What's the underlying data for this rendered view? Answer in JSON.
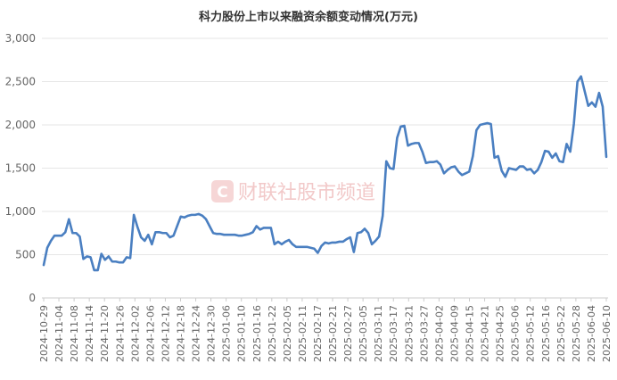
{
  "chart_data": {
    "type": "line",
    "title": "科力股份上市以来融资余额变动情况(万元)",
    "xlabel": "",
    "ylabel": "",
    "ylim": [
      0,
      3000
    ],
    "yticks": [
      "0",
      "500",
      "1,000",
      "1,500",
      "2,000",
      "2,500",
      "3,000"
    ],
    "grid": true,
    "legend": "none",
    "line_color": "#4a7fc1",
    "xticks": [
      "2024-10-29",
      "2024-11-04",
      "2024-11-08",
      "2024-11-14",
      "2024-11-20",
      "2024-11-26",
      "2024-12-02",
      "2024-12-06",
      "2024-12-12",
      "2024-12-18",
      "2024-12-24",
      "2024-12-30",
      "2025-01-06",
      "2025-01-10",
      "2025-01-16",
      "2025-01-22",
      "2025-02-05",
      "2025-02-11",
      "2025-02-17",
      "2025-02-21",
      "2025-02-27",
      "2025-03-05",
      "2025-03-11",
      "2025-03-17",
      "2025-03-21",
      "2025-03-27",
      "2025-04-02",
      "2025-04-09",
      "2025-04-15",
      "2025-04-21",
      "2025-04-25",
      "2025-05-06",
      "2025-05-12",
      "2025-05-16",
      "2025-05-22",
      "2025-05-28",
      "2025-06-04",
      "2025-06-10"
    ],
    "values": [
      380,
      580,
      660,
      720,
      720,
      720,
      760,
      910,
      750,
      750,
      710,
      450,
      480,
      470,
      320,
      320,
      510,
      440,
      480,
      420,
      420,
      410,
      410,
      470,
      460,
      960,
      820,
      700,
      660,
      730,
      620,
      760,
      760,
      750,
      750,
      700,
      720,
      830,
      940,
      930,
      950,
      960,
      960,
      970,
      950,
      910,
      830,
      750,
      740,
      740,
      730,
      730,
      730,
      730,
      720,
      720,
      730,
      740,
      760,
      830,
      790,
      810,
      810,
      810,
      620,
      650,
      620,
      650,
      670,
      620,
      590,
      590,
      590,
      590,
      580,
      570,
      520,
      600,
      640,
      630,
      640,
      640,
      650,
      650,
      680,
      700,
      530,
      750,
      760,
      800,
      750,
      620,
      660,
      710,
      950,
      1580,
      1500,
      1490,
      1850,
      1980,
      1990,
      1760,
      1780,
      1790,
      1790,
      1690,
      1560,
      1570,
      1570,
      1580,
      1540,
      1440,
      1480,
      1510,
      1520,
      1460,
      1420,
      1440,
      1460,
      1640,
      1940,
      2000,
      2010,
      2020,
      2010,
      1620,
      1640,
      1470,
      1400,
      1500,
      1490,
      1480,
      1520,
      1520,
      1480,
      1490,
      1440,
      1480,
      1570,
      1700,
      1690,
      1620,
      1670,
      1580,
      1570,
      1780,
      1690,
      2010,
      2500,
      2560,
      2390,
      2220,
      2260,
      2210,
      2370,
      2210,
      1630
    ]
  },
  "watermark": {
    "text": "财联社股市频道",
    "logo_letter": "C",
    "color": "#e06666"
  }
}
